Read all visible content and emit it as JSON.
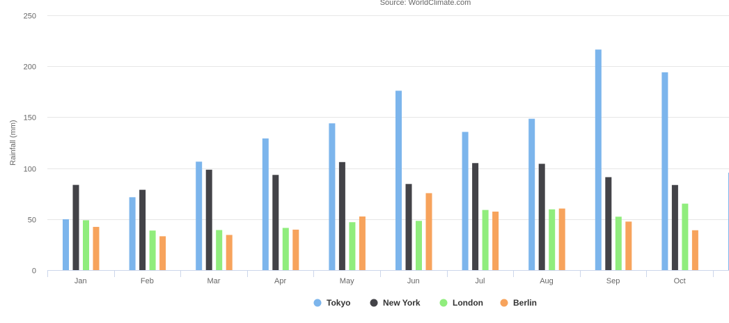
{
  "subtitle": "Source: WorldClimate.com",
  "colors": {
    "Tokyo": "#7cb5ec",
    "New York": "#434348",
    "London": "#90ed7d",
    "Berlin": "#f7a35c",
    "grid": "#e6e6e6",
    "axis": "#ccd6eb"
  },
  "chart_data": {
    "type": "bar",
    "subtitle": "Source: WorldClimate.com",
    "xlabel": "",
    "ylabel": "Rainfall (mm)",
    "ylim": [
      0,
      250
    ],
    "yticks": [
      0,
      50,
      100,
      150,
      200,
      250
    ],
    "grid": true,
    "legend_position": "bottom",
    "categories": [
      "Jan",
      "Feb",
      "Mar",
      "Apr",
      "May",
      "Jun",
      "Jul",
      "Aug",
      "Sep",
      "Oct"
    ],
    "series": [
      {
        "name": "Tokyo",
        "values": [
          49.9,
          71.5,
          106.4,
          129.2,
          144.0,
          176.0,
          135.6,
          148.5,
          216.4,
          194.1
        ]
      },
      {
        "name": "New York",
        "values": [
          83.6,
          78.8,
          98.5,
          93.4,
          106.0,
          84.5,
          105.0,
          104.3,
          91.2,
          83.5
        ]
      },
      {
        "name": "London",
        "values": [
          48.9,
          38.8,
          39.3,
          41.4,
          47.0,
          48.3,
          59.0,
          59.6,
          52.4,
          65.2
        ]
      },
      {
        "name": "Berlin",
        "values": [
          42.4,
          33.2,
          34.5,
          39.7,
          52.6,
          75.5,
          57.4,
          60.4,
          47.6,
          39.1
        ]
      }
    ],
    "partial_next_bar": {
      "series": "Tokyo",
      "value": 95.6
    }
  }
}
